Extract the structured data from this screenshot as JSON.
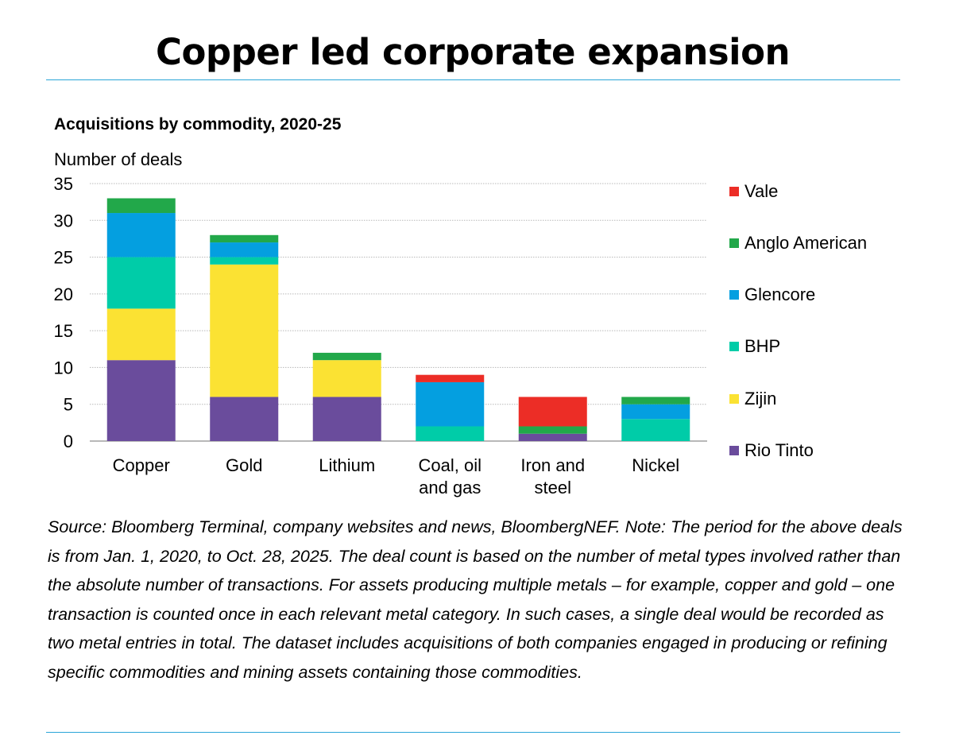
{
  "headline": "Copper led corporate expansion",
  "chart_data": {
    "type": "bar",
    "stacked": true,
    "title": "Acquisitions by commodity, 2020-25",
    "ylabel": "Number of deals",
    "xlabel": "",
    "ylim": [
      0,
      35
    ],
    "yticks": [
      0,
      5,
      10,
      15,
      20,
      25,
      30,
      35
    ],
    "grid": true,
    "legend_position": "right",
    "categories": [
      [
        "Copper"
      ],
      [
        "Gold"
      ],
      [
        "Lithium"
      ],
      [
        "Coal, oil",
        "and gas"
      ],
      [
        "Iron and",
        "steel"
      ],
      [
        "Nickel"
      ]
    ],
    "series": [
      {
        "name": "Rio Tinto",
        "color": "#6a4c9c",
        "values": [
          11,
          6,
          6,
          0,
          1,
          0
        ]
      },
      {
        "name": "Zijin",
        "color": "#fbe233",
        "values": [
          7,
          18,
          5,
          0,
          0,
          0
        ]
      },
      {
        "name": "BHP",
        "color": "#00cca8",
        "values": [
          7,
          1,
          0,
          2,
          0,
          3
        ]
      },
      {
        "name": "Glencore",
        "color": "#049fe0",
        "values": [
          6,
          2,
          0,
          6,
          0,
          2
        ]
      },
      {
        "name": "Anglo American",
        "color": "#22a84a",
        "values": [
          2,
          1,
          1,
          0,
          1,
          1
        ]
      },
      {
        "name": "Vale",
        "color": "#ec2d26",
        "values": [
          0,
          0,
          0,
          1,
          4,
          0
        ]
      }
    ]
  },
  "legend": [
    {
      "label": "Vale",
      "color": "#ec2d26"
    },
    {
      "label": "Anglo American",
      "color": "#22a84a"
    },
    {
      "label": "Glencore",
      "color": "#049fe0"
    },
    {
      "label": "BHP",
      "color": "#00cca8"
    },
    {
      "label": "Zijin",
      "color": "#fbe233"
    },
    {
      "label": "Rio Tinto",
      "color": "#6a4c9c"
    }
  ],
  "note": "Source: Bloomberg Terminal, company websites and news, BloombergNEF. Note: The period for the above deals is from Jan. 1, 2020, to Oct. 28, 2025. The deal count is based on the number of metal types involved rather than the absolute number of transactions. For assets producing multiple metals – for example, copper and gold – one transaction is counted once in each relevant metal category. In such cases, a single deal would be recorded as two metal entries in total. The dataset includes acquisitions of both companies engaged in producing or refining specific commodities and mining assets containing those commodities."
}
